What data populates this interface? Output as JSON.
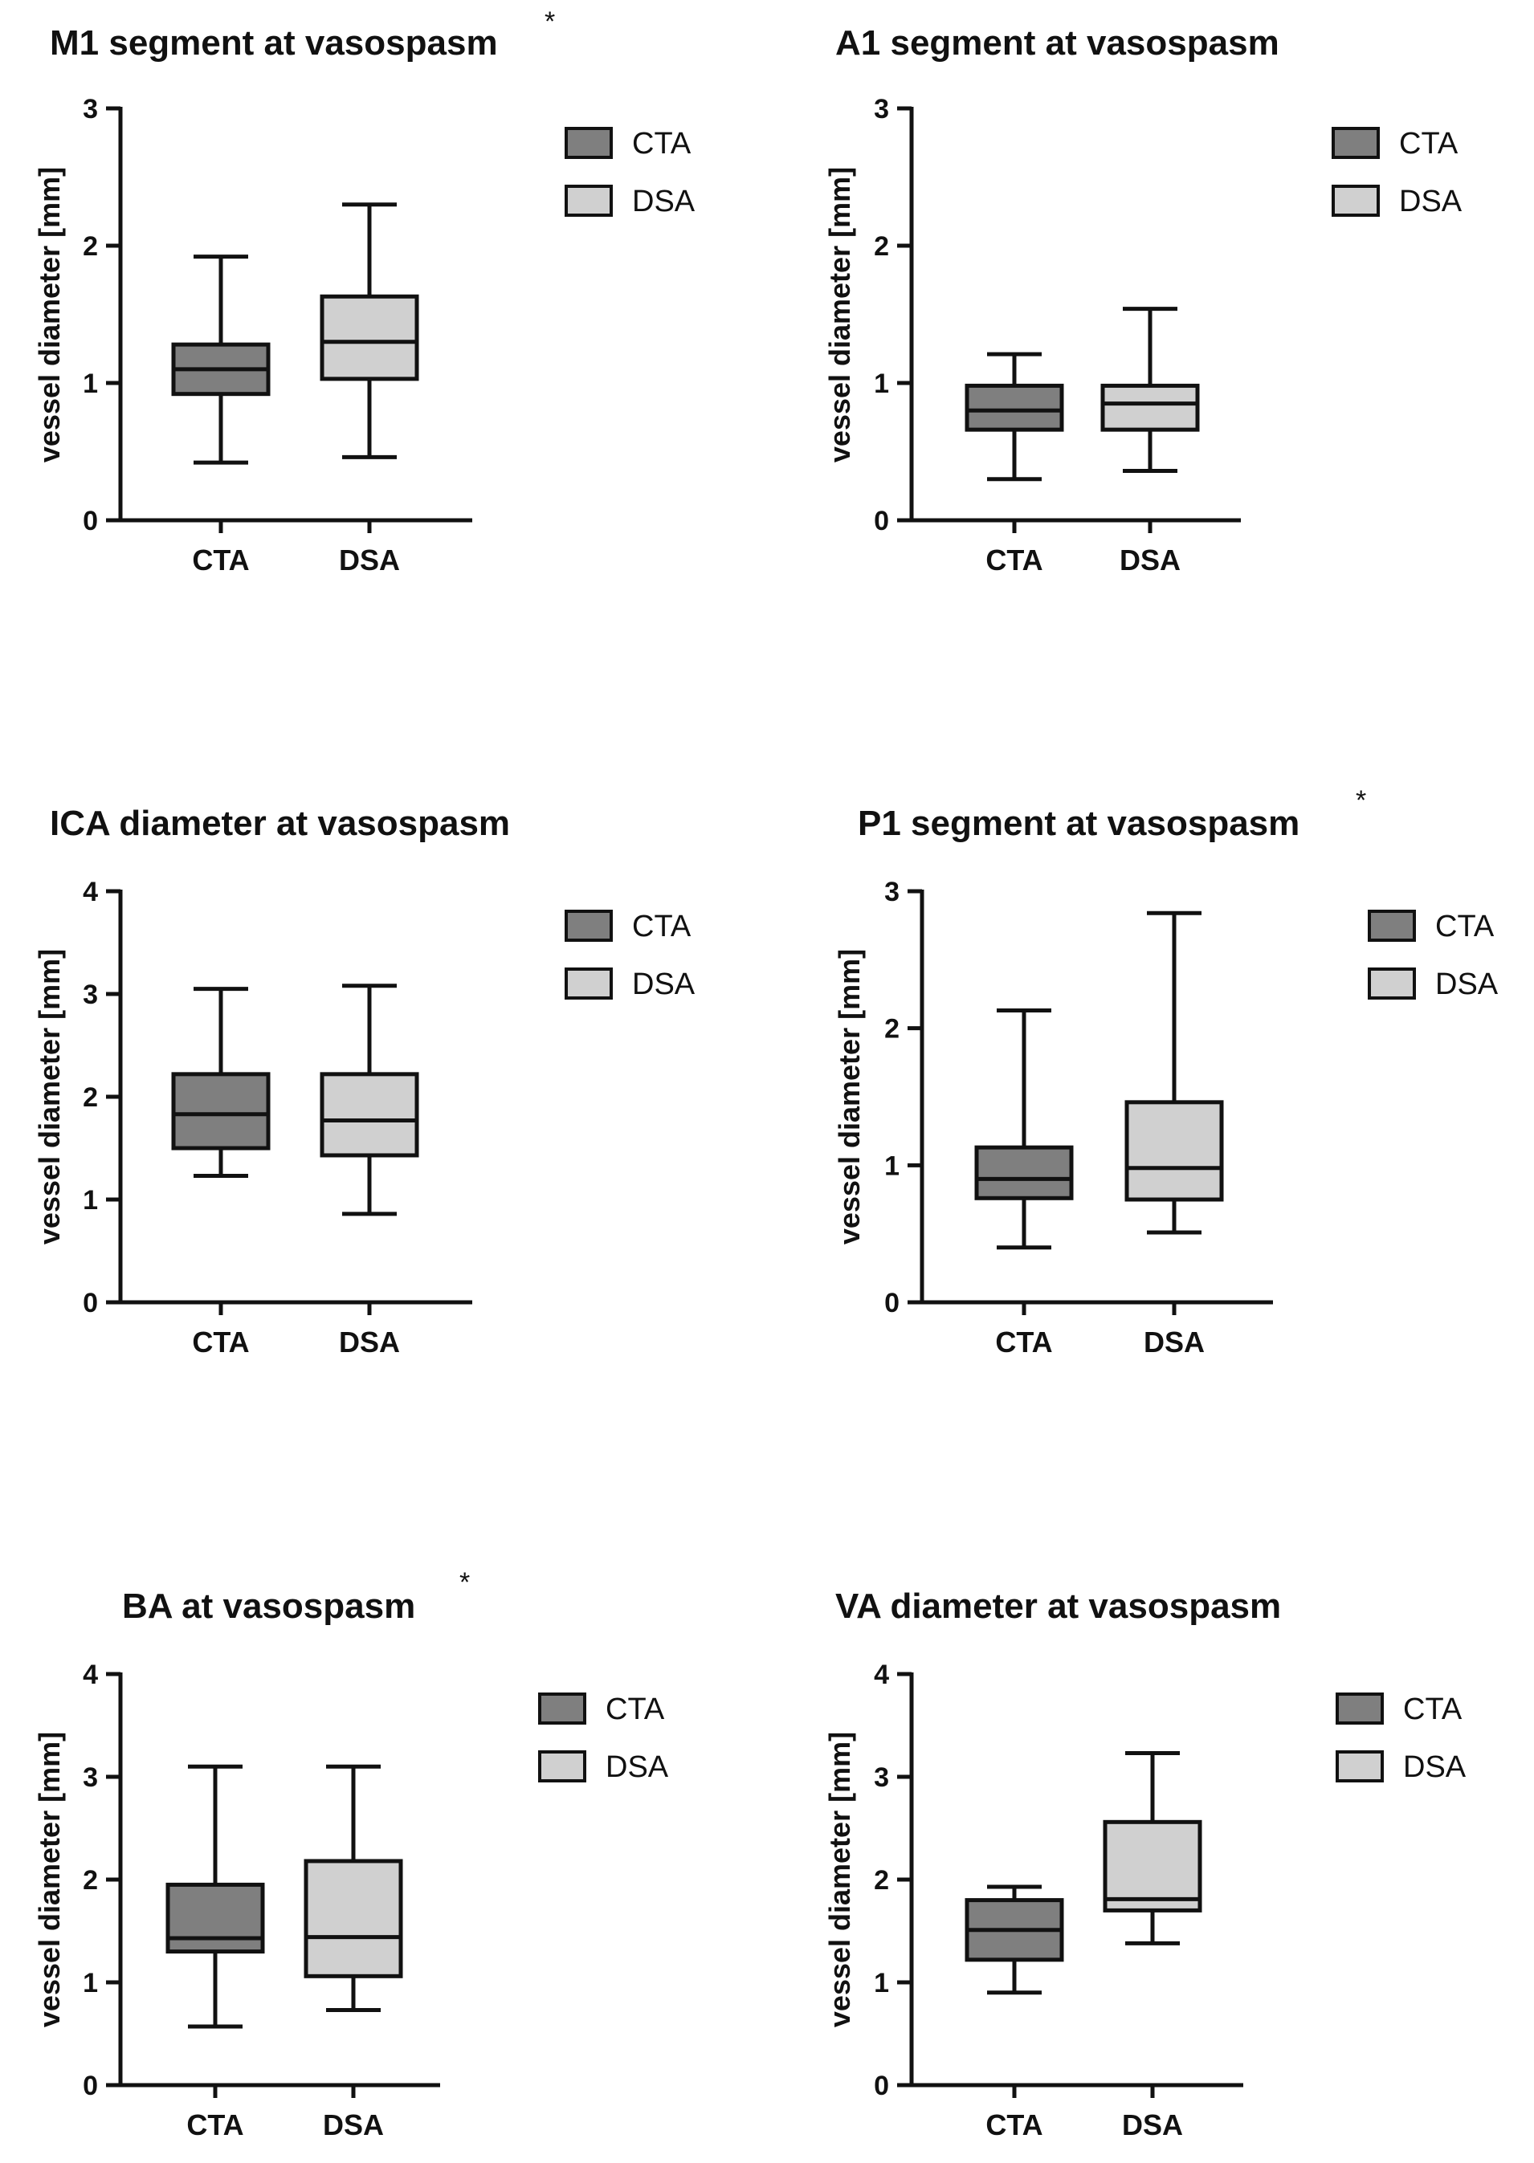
{
  "colors": {
    "CTA": "#7f7f7f",
    "DSA": "#d0d0d0",
    "stroke": "#111111"
  },
  "chart_data": [
    {
      "type": "boxplot",
      "title": "M1 segment at vasospasm",
      "significance": "*",
      "ylabel": "vessel diameter [mm]",
      "ylim": [
        0,
        3
      ],
      "yticks": [
        0,
        1,
        2,
        3
      ],
      "categories": [
        "CTA",
        "DSA"
      ],
      "legend": [
        "CTA",
        "DSA"
      ],
      "boxes": [
        {
          "name": "CTA",
          "min": 0.42,
          "q1": 0.92,
          "median": 1.1,
          "q3": 1.28,
          "max": 1.92
        },
        {
          "name": "DSA",
          "min": 0.46,
          "q1": 1.03,
          "median": 1.3,
          "q3": 1.63,
          "max": 2.3
        }
      ]
    },
    {
      "type": "boxplot",
      "title": "A1 segment at vasospasm",
      "significance": "",
      "ylabel": "vessel diameter [mm]",
      "ylim": [
        0,
        3
      ],
      "yticks": [
        0,
        1,
        2,
        3
      ],
      "categories": [
        "CTA",
        "DSA"
      ],
      "legend": [
        "CTA",
        "DSA"
      ],
      "boxes": [
        {
          "name": "CTA",
          "min": 0.3,
          "q1": 0.66,
          "median": 0.8,
          "q3": 0.98,
          "max": 1.21
        },
        {
          "name": "DSA",
          "min": 0.36,
          "q1": 0.66,
          "median": 0.85,
          "q3": 0.98,
          "max": 1.54
        }
      ]
    },
    {
      "type": "boxplot",
      "title": "ICA diameter at vasospasm",
      "significance": "",
      "ylabel": "vessel diameter [mm]",
      "ylim": [
        0,
        4
      ],
      "yticks": [
        0,
        1,
        2,
        3,
        4
      ],
      "categories": [
        "CTA",
        "DSA"
      ],
      "legend": [
        "CTA",
        "DSA"
      ],
      "boxes": [
        {
          "name": "CTA",
          "min": 1.23,
          "q1": 1.5,
          "median": 1.83,
          "q3": 2.22,
          "max": 3.05
        },
        {
          "name": "DSA",
          "min": 0.86,
          "q1": 1.43,
          "median": 1.77,
          "q3": 2.22,
          "max": 3.08
        }
      ]
    },
    {
      "type": "boxplot",
      "title": "P1 segment at vasospasm",
      "significance": "*",
      "ylabel": "vessel diameter [mm]",
      "ylim": [
        0,
        3
      ],
      "yticks": [
        0,
        1,
        2,
        3
      ],
      "categories": [
        "CTA",
        "DSA"
      ],
      "legend": [
        "CTA",
        "DSA"
      ],
      "boxes": [
        {
          "name": "CTA",
          "min": 0.4,
          "q1": 0.76,
          "median": 0.9,
          "q3": 1.13,
          "max": 2.13
        },
        {
          "name": "DSA",
          "min": 0.51,
          "q1": 0.75,
          "median": 0.98,
          "q3": 1.46,
          "max": 2.84
        }
      ]
    },
    {
      "type": "boxplot",
      "title": "BA at vasospasm",
      "significance": "*",
      "ylabel": "vessel diameter [mm]",
      "ylim": [
        0,
        4
      ],
      "yticks": [
        0,
        1,
        2,
        3,
        4
      ],
      "categories": [
        "CTA",
        "DSA"
      ],
      "legend": [
        "CTA",
        "DSA"
      ],
      "boxes": [
        {
          "name": "CTA",
          "min": 0.57,
          "q1": 1.3,
          "median": 1.43,
          "q3": 1.95,
          "max": 3.1
        },
        {
          "name": "DSA",
          "min": 0.73,
          "q1": 1.06,
          "median": 1.44,
          "q3": 2.18,
          "max": 3.1
        }
      ]
    },
    {
      "type": "boxplot",
      "title": "VA diameter at vasospasm",
      "significance": "",
      "ylabel": "vessel diameter [mm]",
      "ylim": [
        0,
        4
      ],
      "yticks": [
        0,
        1,
        2,
        3,
        4
      ],
      "categories": [
        "CTA",
        "DSA"
      ],
      "legend": [
        "CTA",
        "DSA"
      ],
      "boxes": [
        {
          "name": "CTA",
          "min": 0.9,
          "q1": 1.22,
          "median": 1.51,
          "q3": 1.8,
          "max": 1.93
        },
        {
          "name": "DSA",
          "min": 1.38,
          "q1": 1.7,
          "median": 1.81,
          "q3": 2.56,
          "max": 3.23
        }
      ]
    }
  ]
}
